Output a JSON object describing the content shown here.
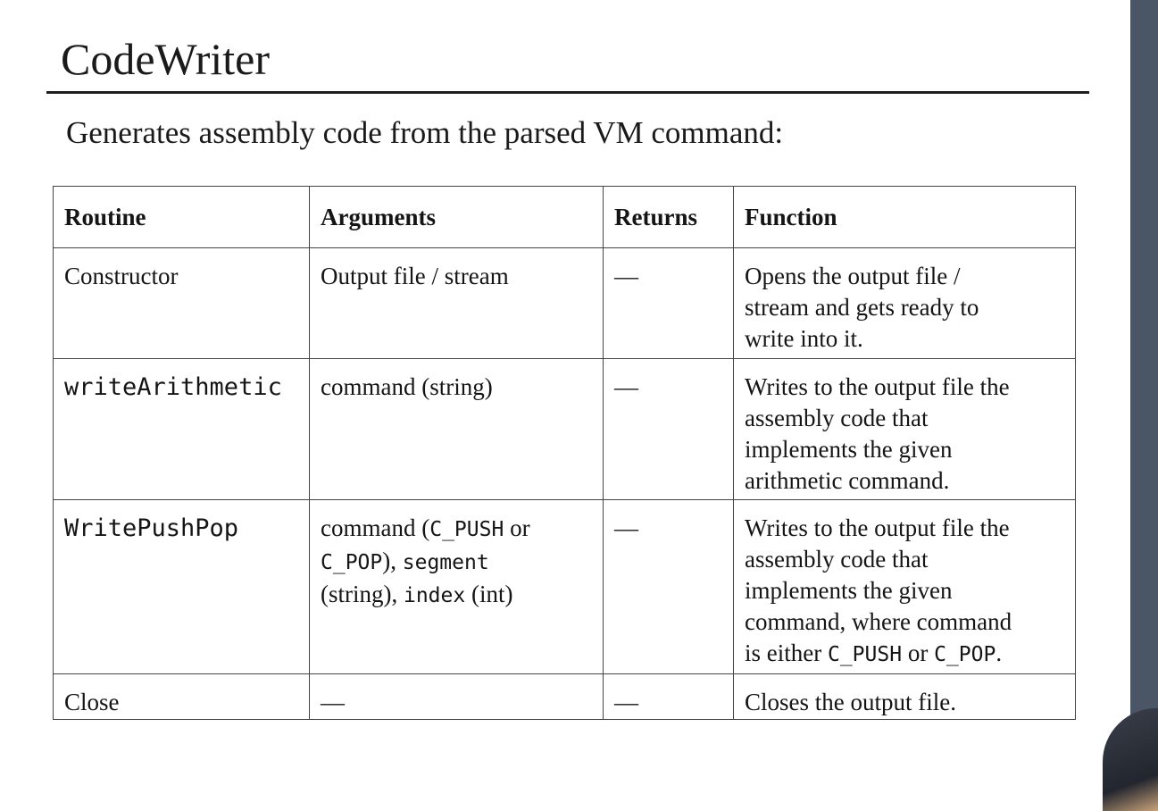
{
  "title": "CodeWriter",
  "subtitle": "Generates assembly code from the parsed VM command:",
  "table": {
    "headers": [
      "Routine",
      "Arguments",
      "Returns",
      "Function"
    ],
    "rows": [
      {
        "routine": "Constructor",
        "arguments": [
          "Output file / stream"
        ],
        "returns": "—",
        "function": [
          "Opens the output file /",
          "stream and gets ready to",
          "write into it."
        ]
      },
      {
        "routine": "writeArithmetic",
        "arguments": [
          "command (string)"
        ],
        "returns": "—",
        "function": [
          "Writes to the output file the",
          "assembly code that",
          "implements the given",
          "arithmetic command."
        ]
      },
      {
        "routine": "WritePushPop",
        "arguments_parts": {
          "a1": "command (",
          "a2": "C_PUSH",
          "a3": " or",
          "a4": "C_POP",
          "a5": "), ",
          "a6": "segment",
          "a7": "(string), ",
          "a8": "index",
          "a9": " (int)"
        },
        "returns": "—",
        "function": [
          "Writes to the output file the",
          "assembly code that",
          "implements the given",
          "command, where command"
        ],
        "function_last": {
          "f1": "is either ",
          "f2": "C_PUSH",
          "f3": " or ",
          "f4": "C_POP",
          "f5": "."
        }
      },
      {
        "routine": "Close",
        "arguments": [
          "—"
        ],
        "returns": "—",
        "function": [
          "Closes the output file."
        ]
      }
    ]
  }
}
